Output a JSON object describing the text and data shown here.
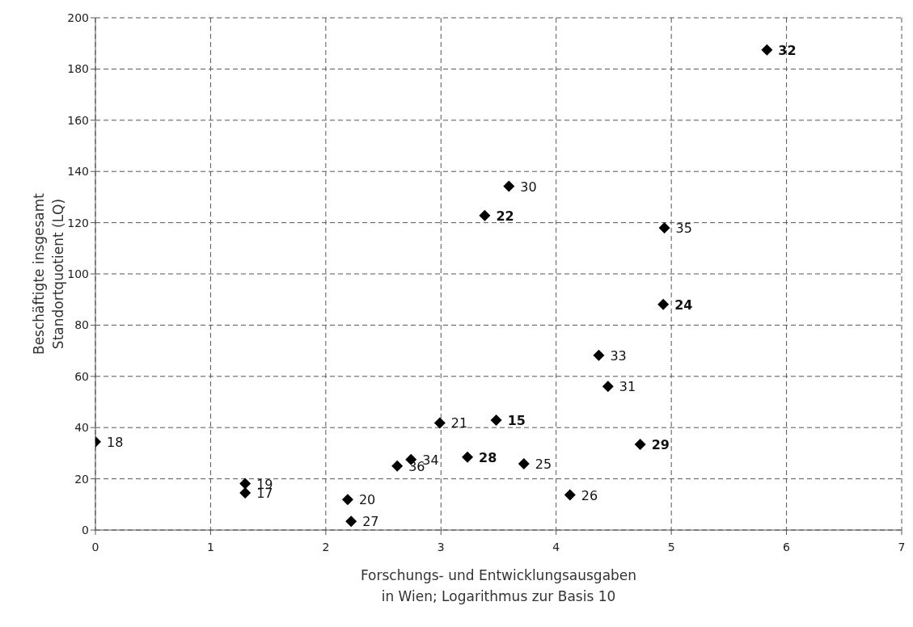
{
  "chart_data": {
    "type": "scatter",
    "xlabel": "Forschungs- und Entwicklungsausgaben\nin Wien; Logarithmus zur Basis 10",
    "ylabel": "Beschäftigte insgesamt\nStandortquotient (LQ)",
    "xlim": [
      0,
      7
    ],
    "xticks": [
      0,
      1,
      2,
      3,
      4,
      5,
      6,
      7
    ],
    "ylim": [
      0,
      200
    ],
    "yticks": [
      0,
      20,
      40,
      60,
      80,
      100,
      120,
      140,
      160,
      180,
      200
    ],
    "grid": true,
    "marker": "diamond",
    "series": [
      {
        "color": "#000000",
        "x": [
          0,
          1.3,
          1.3,
          2.19,
          2.22,
          2.62,
          2.74,
          2.99,
          3.72,
          4.12,
          4.37,
          4.45,
          3.59,
          4.94
        ],
        "values": [
          34.5,
          18.1,
          14.5,
          11.9,
          3.4,
          25,
          27.5,
          41.8,
          25.9,
          13.7,
          68.2,
          56.1,
          134.2,
          118
        ]
      },
      {
        "color": "#000000",
        "x": [
          5.83,
          3.38,
          4.93,
          3.48,
          3.23,
          4.73
        ],
        "values": [
          187.5,
          122.8,
          88.1,
          42.9,
          28.5,
          33.4
        ]
      }
    ],
    "annotations": [
      {
        "text": "18",
        "x": 0,
        "y": 34.5
      },
      {
        "text": "19",
        "x": 1.3,
        "y": 18.1
      },
      {
        "text": "17",
        "x": 1.3,
        "y": 14.5
      },
      {
        "text": "20",
        "x": 2.19,
        "y": 11.9
      },
      {
        "text": "27",
        "x": 2.22,
        "y": 3.4
      },
      {
        "text": "36",
        "x": 2.62,
        "y": 25
      },
      {
        "text": "34",
        "x": 2.74,
        "y": 27.5
      },
      {
        "text": "21",
        "x": 2.99,
        "y": 41.8
      },
      {
        "text": "25",
        "x": 3.72,
        "y": 25.9
      },
      {
        "text": "26",
        "x": 4.12,
        "y": 13.7
      },
      {
        "text": "33",
        "x": 4.37,
        "y": 68.2
      },
      {
        "text": "31",
        "x": 4.45,
        "y": 56.1
      },
      {
        "text": "30",
        "x": 3.59,
        "y": 134.2
      },
      {
        "text": "35",
        "x": 4.94,
        "y": 118
      },
      {
        "text": "32",
        "x": 5.83,
        "y": 187.5
      },
      {
        "text": "22",
        "x": 3.38,
        "y": 122.8
      },
      {
        "text": "24",
        "x": 4.93,
        "y": 88.1
      },
      {
        "text": "15",
        "x": 3.48,
        "y": 42.9
      },
      {
        "text": "28",
        "x": 3.23,
        "y": 28.5
      },
      {
        "text": "29",
        "x": 4.73,
        "y": 33.4
      }
    ]
  }
}
